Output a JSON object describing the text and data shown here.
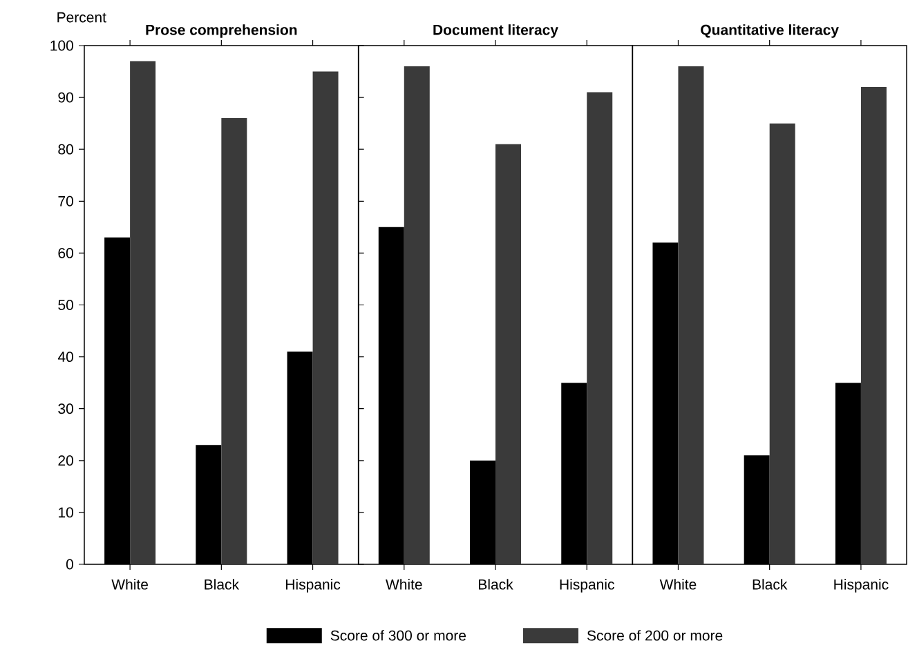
{
  "chart_data": [
    {
      "type": "bar",
      "title": "Prose comprehension",
      "ylabel": "Percent",
      "categories": [
        "White",
        "Black",
        "Hispanic"
      ],
      "ylim": [
        0,
        100
      ],
      "yticks": [
        0,
        10,
        20,
        30,
        40,
        50,
        60,
        70,
        80,
        90,
        100
      ],
      "legend": "bottom",
      "series": [
        {
          "name": "Score of 300 or more",
          "color": "#000000",
          "values": [
            63,
            23,
            41
          ]
        },
        {
          "name": "Score of 200 or more",
          "color": "#3a3a3a",
          "values": [
            97,
            86,
            95
          ]
        }
      ]
    },
    {
      "type": "bar",
      "title": "Document literacy",
      "categories": [
        "White",
        "Black",
        "Hispanic"
      ],
      "ylim": [
        0,
        100
      ],
      "tick_labels": "x",
      "series": [
        {
          "color": "#000000",
          "values": [
            65,
            20,
            35
          ]
        },
        {
          "color": "#3a3a3a",
          "values": [
            96,
            81,
            91
          ]
        }
      ]
    },
    {
      "type": "bar",
      "title": "Quantitative literacy",
      "categories": [
        "White",
        "Black",
        "Hispanic"
      ],
      "ylim": [
        0,
        100
      ],
      "tick_labels": "x",
      "series": [
        {
          "color": "#000000",
          "values": [
            62,
            21,
            35
          ]
        },
        {
          "color": "#3a3a3a",
          "values": [
            96,
            85,
            92
          ]
        }
      ]
    }
  ]
}
